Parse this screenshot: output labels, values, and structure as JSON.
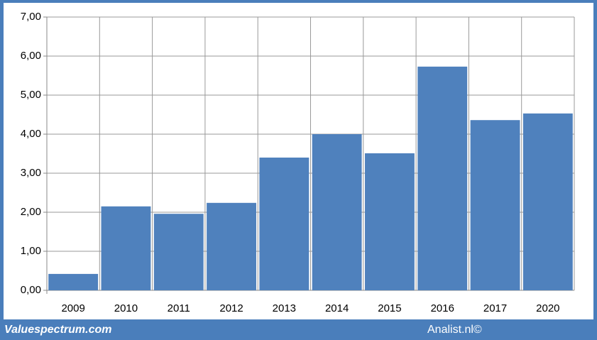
{
  "chart_data": {
    "type": "bar",
    "categories": [
      "2009",
      "2010",
      "2011",
      "2012",
      "2013",
      "2014",
      "2015",
      "2016",
      "2017",
      "2020"
    ],
    "values": [
      0.42,
      2.15,
      1.96,
      2.24,
      3.4,
      4.0,
      3.51,
      5.73,
      4.36,
      4.53
    ],
    "color": "#4f81bd",
    "ylim": [
      0,
      7
    ],
    "yticks": [
      {
        "value": 0,
        "label": "0,00"
      },
      {
        "value": 1,
        "label": "1,00"
      },
      {
        "value": 2,
        "label": "2,00"
      },
      {
        "value": 3,
        "label": "3,00"
      },
      {
        "value": 4,
        "label": "4,00"
      },
      {
        "value": 5,
        "label": "5,00"
      },
      {
        "value": 6,
        "label": "6,00"
      },
      {
        "value": 7,
        "label": "7,00"
      }
    ],
    "grid": true
  },
  "footer": {
    "left": "Valuespectrum.com",
    "right": "Analist.nl©"
  }
}
